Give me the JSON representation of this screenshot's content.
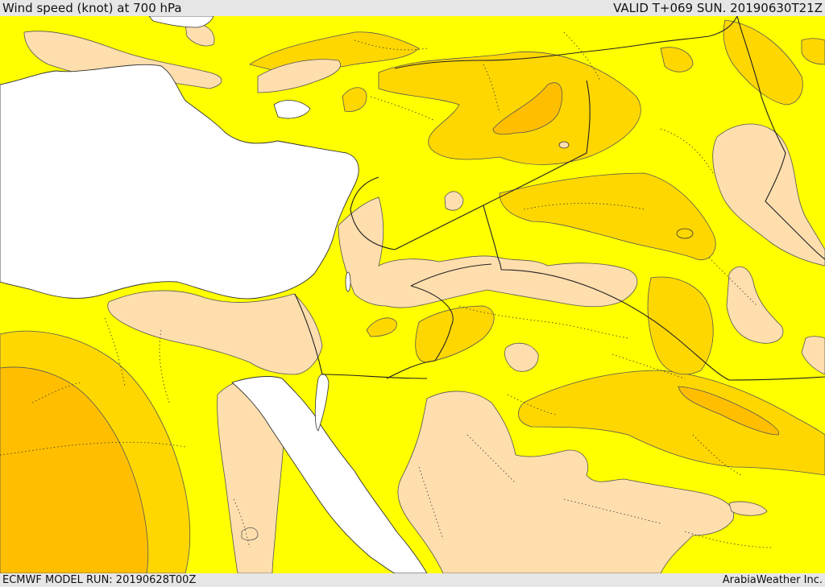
{
  "header": {
    "title": "Wind speed (knot) at 700 hPa",
    "valid": "VALID T+069 SUN. 20190630T21Z"
  },
  "footer": {
    "model_run": "ECMWF MODEL RUN: 20190628T00Z",
    "credit": "ArabiaWeather Inc."
  },
  "colors": {
    "sea": "#ffffff",
    "band_low": "#ffdead",
    "band_mid": "#ffff00",
    "band_high": "#ffd700",
    "band_higher": "#ffbf00",
    "outline": "#333333"
  }
}
